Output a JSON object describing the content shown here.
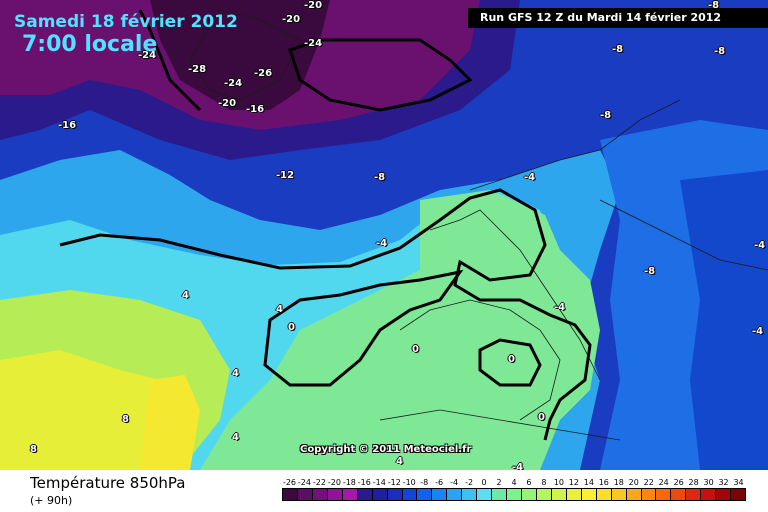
{
  "header": {
    "date": "Samedi 18 février 2012",
    "time": "7:00 locale",
    "run": "Run GFS 12 Z du Mardi 14 février 2012"
  },
  "copyright": "Copyright © 2011 Meteociel.fr",
  "footer": {
    "parameter": "Température 850hPa",
    "lead": "(+ 90h)"
  },
  "scale": {
    "values": [
      "-26",
      "-24",
      "-22",
      "-20",
      "-18",
      "-16",
      "-14",
      "-12",
      "-10",
      "-8",
      "-6",
      "-4",
      "-2",
      "0",
      "2",
      "4",
      "6",
      "8",
      "10",
      "12",
      "14",
      "16",
      "18",
      "20",
      "22",
      "24",
      "26",
      "28",
      "30",
      "32",
      "34"
    ],
    "colors": [
      "#3b0a3f",
      "#5a0f60",
      "#760f7e",
      "#8e1596",
      "#a11aa8",
      "#2b1a8a",
      "#20209e",
      "#1a2eb8",
      "#1446d6",
      "#1462e8",
      "#1e82f0",
      "#2ea2f0",
      "#40c0ee",
      "#60dcf0",
      "#6ee8a8",
      "#7ef08c",
      "#98f27a",
      "#b4f464",
      "#d0f44e",
      "#e8f03a",
      "#f8f030",
      "#f8e028",
      "#f8c820",
      "#f8a818",
      "#f88810",
      "#f86810",
      "#f04810",
      "#e02810",
      "#c81010",
      "#a00808",
      "#780404"
    ]
  },
  "isotherm_labels": [
    "-20",
    "-20",
    "-24",
    "-24",
    "-28",
    "-24",
    "-26",
    "-20",
    "-16",
    "-16",
    "-12",
    "-8",
    "-8",
    "-8",
    "-8",
    "-4",
    "-4",
    "-8",
    "-4",
    "-4",
    "-4",
    "4",
    "4",
    "0",
    "0",
    "0",
    "0",
    "4",
    "4",
    "8",
    "8",
    "4",
    "-4",
    "-8"
  ]
}
